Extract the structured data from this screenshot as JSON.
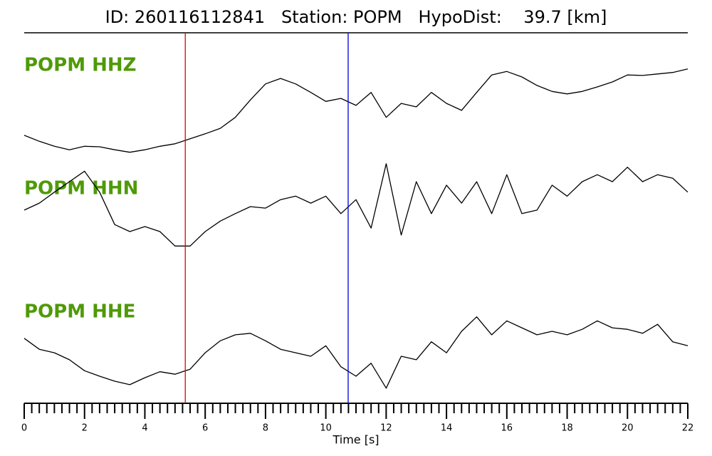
{
  "chart_data": {
    "type": "line",
    "title": "ID: 260116112841   Station: POPM   HypoDist:    39.7 [km]",
    "xlabel": "Time [s]",
    "xlim": [
      0,
      22
    ],
    "xticks": [
      0,
      2,
      4,
      6,
      8,
      10,
      12,
      14,
      16,
      18,
      20,
      22
    ],
    "xminorticks": [
      0.25,
      0.5,
      0.75,
      1,
      1.25,
      1.5,
      1.75,
      2.25,
      2.5,
      2.75,
      3,
      3.25,
      3.5,
      3.75,
      4.25,
      4.5,
      4.75,
      5,
      5.25,
      5.5,
      5.75,
      6.25,
      6.5,
      6.75,
      7,
      7.25,
      7.5,
      7.75,
      8.25,
      8.5,
      8.75,
      9,
      9.25,
      9.5,
      9.75,
      10.25,
      10.5,
      10.75,
      11,
      11.25,
      11.5,
      11.75,
      12.25,
      12.5,
      12.75,
      13,
      13.25,
      13.5,
      13.75,
      14.25,
      14.5,
      14.75,
      15,
      15.25,
      15.5,
      15.75,
      16.25,
      16.5,
      16.75,
      17,
      17.25,
      17.5,
      17.75,
      18.25,
      18.5,
      18.75,
      19,
      19.25,
      19.5,
      19.75,
      20.25,
      20.5,
      20.75,
      21,
      21.25,
      21.5,
      21.75
    ],
    "ylim": [
      -1,
      1
    ],
    "label_color": "#4f9a08",
    "x": [
      0,
      0.5,
      1,
      1.5,
      2,
      2.5,
      3,
      3.5,
      4,
      4.5,
      5,
      5.5,
      6,
      6.5,
      7,
      7.5,
      8,
      8.5,
      9,
      9.5,
      10,
      10.5,
      11,
      11.5,
      12,
      12.5,
      13,
      13.5,
      14,
      14.5,
      15,
      15.5,
      16,
      16.5,
      17,
      17.5,
      18,
      18.5,
      19,
      19.5,
      20,
      20.5,
      21,
      21.5,
      22
    ],
    "series": [
      {
        "name": "POPM HHZ",
        "color": "#000000",
        "values": [
          -0.57,
          -0.69,
          -0.79,
          -0.86,
          -0.79,
          -0.8,
          -0.86,
          -0.91,
          -0.86,
          -0.79,
          -0.74,
          -0.64,
          -0.54,
          -0.43,
          -0.21,
          0.14,
          0.46,
          0.57,
          0.46,
          0.29,
          0.11,
          0.17,
          0.03,
          0.29,
          -0.21,
          0.07,
          0,
          0.29,
          0.07,
          -0.07,
          0.29,
          0.64,
          0.71,
          0.6,
          0.43,
          0.31,
          0.26,
          0.31,
          0.4,
          0.5,
          0.64,
          0.63,
          0.66,
          0.69,
          0.76
        ]
      },
      {
        "name": "POPM HHN",
        "color": "#000000",
        "values": [
          -0.07,
          0.07,
          0.29,
          0.5,
          0.71,
          0.29,
          -0.36,
          -0.5,
          -0.4,
          -0.5,
          -0.79,
          -0.79,
          -0.5,
          -0.29,
          -0.14,
          0,
          -0.03,
          0.14,
          0.21,
          0.07,
          0.21,
          -0.14,
          0.14,
          -0.43,
          0.86,
          -0.57,
          0.5,
          -0.14,
          0.43,
          0.07,
          0.5,
          -0.14,
          0.64,
          -0.14,
          -0.07,
          0.43,
          0.21,
          0.5,
          0.64,
          0.5,
          0.79,
          0.5,
          0.64,
          0.57,
          0.29
        ]
      },
      {
        "name": "POPM HHE",
        "color": "#000000",
        "values": [
          0.36,
          0.14,
          0.07,
          -0.07,
          -0.29,
          -0.4,
          -0.5,
          -0.57,
          -0.43,
          -0.31,
          -0.36,
          -0.26,
          0.07,
          0.31,
          0.43,
          0.46,
          0.31,
          0.14,
          0.07,
          0,
          0.21,
          -0.21,
          -0.4,
          -0.14,
          -0.64,
          0,
          -0.07,
          0.29,
          0.07,
          0.5,
          0.79,
          0.43,
          0.71,
          0.57,
          0.43,
          0.5,
          0.43,
          0.54,
          0.71,
          0.57,
          0.54,
          0.46,
          0.64,
          0.29,
          0.21
        ]
      }
    ],
    "vlines": [
      {
        "x": 5.34,
        "color": "#e00000"
      },
      {
        "x": 10.74,
        "color": "#0000dd"
      }
    ]
  }
}
